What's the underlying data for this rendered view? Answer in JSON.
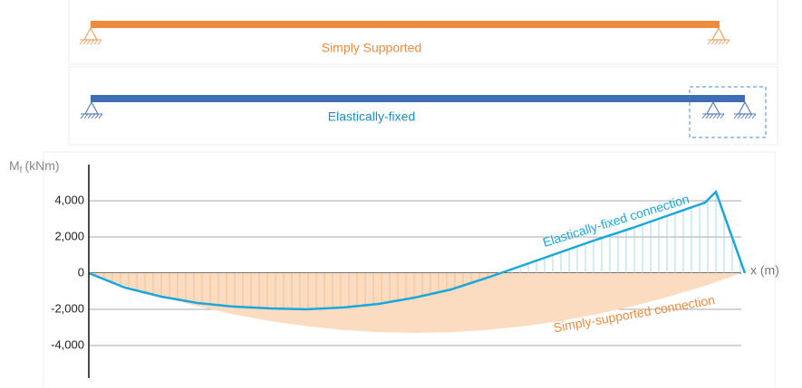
{
  "panels": [
    {
      "label": "Simply Supported"
    },
    {
      "label": "Elastically-fixed"
    }
  ],
  "chart_data": {
    "type": "line",
    "y_label": "M",
    "y_label_sub": "f",
    "y_label_unit": "(kNm)",
    "x_label": "x (m)",
    "xlim": [
      0,
      18
    ],
    "ylim": [
      -5800,
      6000
    ],
    "yticks": [
      {
        "value": 4000,
        "label": "4,000"
      },
      {
        "value": 2000,
        "label": "2,000"
      },
      0,
      {
        "value": -2000,
        "label": "-2,000"
      },
      {
        "value": -4000,
        "label": "-4,000"
      }
    ],
    "grid": true,
    "series": [
      {
        "name": "Simply-supported connection",
        "color": "#fbdcc0",
        "fill": true,
        "x": [
          0,
          1,
          2,
          3,
          4,
          5,
          6,
          7,
          8,
          9,
          10,
          11,
          12,
          13,
          14,
          15,
          16,
          17,
          18
        ],
        "values": [
          0,
          -700,
          -1300,
          -1830,
          -2280,
          -2650,
          -2930,
          -3140,
          -3260,
          -3300,
          -3260,
          -3140,
          -2930,
          -2650,
          -2280,
          -1830,
          -1300,
          -700,
          0
        ]
      },
      {
        "name": "Elastically-fixed connection",
        "color": "#1aa7dc",
        "fill": false,
        "x": [
          0,
          1,
          2,
          3,
          4,
          5,
          6,
          7,
          8,
          9,
          10,
          11,
          12,
          13,
          14,
          15,
          16,
          17,
          17.3,
          18.1
        ],
        "values": [
          0,
          -800,
          -1300,
          -1650,
          -1850,
          -1950,
          -2000,
          -1900,
          -1700,
          -1350,
          -900,
          -250,
          450,
          1150,
          1850,
          2500,
          3200,
          3900,
          4500,
          0
        ]
      }
    ]
  }
}
